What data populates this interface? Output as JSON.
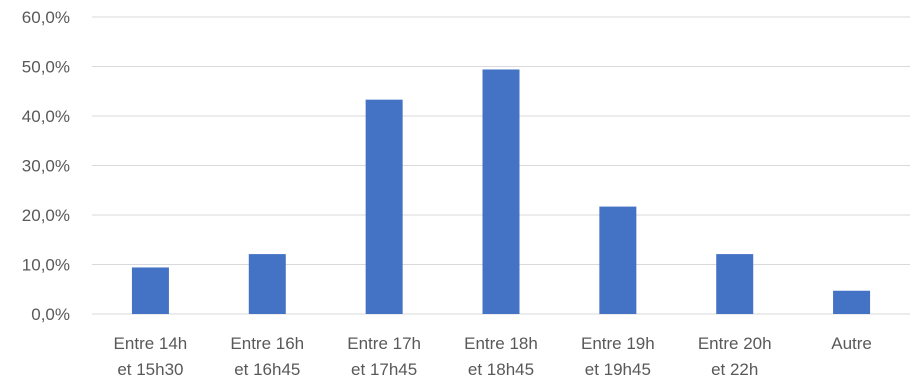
{
  "chart_data": {
    "type": "bar",
    "categories": [
      [
        "Entre 14h",
        "et 15h30"
      ],
      [
        "Entre 16h",
        "et 16h45"
      ],
      [
        "Entre 17h",
        "et 17h45"
      ],
      [
        "Entre 18h",
        "et 18h45"
      ],
      [
        "Entre 19h",
        "et 19h45"
      ],
      [
        "Entre 20h",
        "et 22h"
      ],
      [
        "Autre"
      ]
    ],
    "values": [
      9.4,
      12.1,
      43.3,
      49.4,
      21.7,
      12.1,
      4.7
    ],
    "yticks": [
      "0,0%",
      "10,0%",
      "20,0%",
      "30,0%",
      "40,0%",
      "50,0%",
      "60,0%"
    ],
    "ylim": [
      0,
      60
    ],
    "grid": true,
    "legend": "none",
    "colors": {
      "bar": "#4472C4",
      "grid": "#D9D9D9",
      "axis": "#D9D9D9"
    }
  }
}
